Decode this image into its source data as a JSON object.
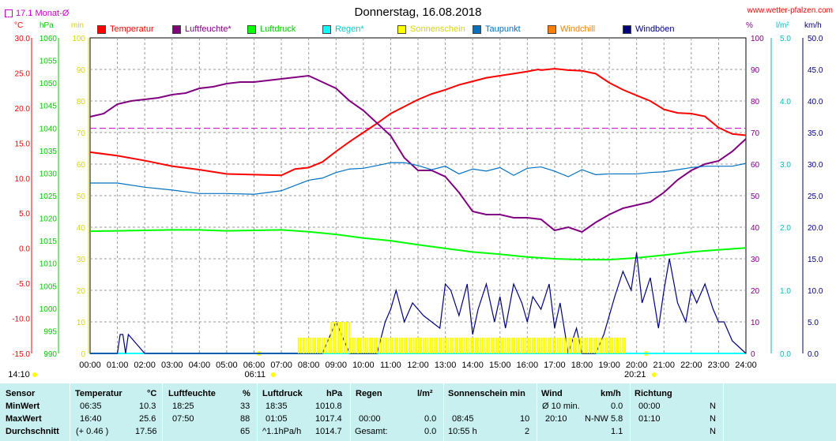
{
  "title": "Donnerstag, 16.08.2018",
  "site": "www.wetter-pfalzen.com",
  "monthly_avg_label": "17.1 Monat-Ø",
  "axis_units": {
    "temp": "°C",
    "pressure": "hPa",
    "minutes": "min",
    "percent": "%",
    "rain": "l/m²",
    "wind": "km/h"
  },
  "legend": [
    {
      "label": "Temperatur",
      "color": "#ff0000"
    },
    {
      "label": "Luftfeuchte*",
      "color": "#800080"
    },
    {
      "label": "Luftdruck",
      "color": "#00ff00"
    },
    {
      "label": "Regen*",
      "color": "#00ffff"
    },
    {
      "label": "Sonnenschein",
      "color": "#ffff00"
    },
    {
      "label": "Taupunkt",
      "color": "#0070c0"
    },
    {
      "label": "Windchill",
      "color": "#ff8000"
    },
    {
      "label": "Windböen",
      "color": "#000080"
    }
  ],
  "axes": {
    "temp_ticks": [
      "30.0",
      "25.0",
      "20.0",
      "15.0",
      "10.0",
      "5.0",
      "0.0",
      "-5.0",
      "-10.0",
      "-15.0"
    ],
    "pressure_ticks": [
      "1060",
      "1055",
      "1050",
      "1045",
      "1040",
      "1035",
      "1030",
      "1025",
      "1020",
      "1015",
      "1010",
      "1005",
      "1000",
      "995",
      "990"
    ],
    "minutes_ticks": [
      "100",
      "90",
      "80",
      "70",
      "60",
      "50",
      "40",
      "30",
      "20",
      "10",
      "0"
    ],
    "percent_ticks": [
      "100",
      "90",
      "80",
      "70",
      "60",
      "50",
      "40",
      "30",
      "20",
      "10",
      "0"
    ],
    "rain_ticks": [
      "5.0",
      "4.0",
      "3.0",
      "2.0",
      "1.0",
      "0.0"
    ],
    "wind_ticks": [
      "50.0",
      "45.0",
      "40.0",
      "35.0",
      "30.0",
      "25.0",
      "20.0",
      "15.0",
      "10.0",
      "5.0",
      "0.0"
    ],
    "time_ticks": [
      "00:00",
      "01:00",
      "02:00",
      "03:00",
      "04:00",
      "05:00",
      "06:00",
      "07:00",
      "08:00",
      "09:00",
      "10:00",
      "11:00",
      "12:00",
      "13:00",
      "14:00",
      "15:00",
      "16:00",
      "17:00",
      "18:00",
      "19:00",
      "20:00",
      "21:00",
      "22:00",
      "23:00",
      "24:00"
    ],
    "sunrise": "06:11",
    "sunset": "20:21",
    "now": "14:10"
  },
  "chart_data": {
    "type": "line",
    "title": "Donnerstag, 16.08.2018",
    "x_unit": "hours",
    "monthly_avg_temp": 17.1,
    "temp_range": [
      -15,
      30
    ],
    "pressure_range": [
      990,
      1060
    ],
    "percent_range": [
      0,
      100
    ],
    "rain_range": [
      0,
      5
    ],
    "wind_range": [
      0,
      50
    ],
    "series": [
      {
        "name": "Temperatur",
        "axis": "temp",
        "x": [
          0,
          1,
          2,
          3,
          4,
          5,
          6,
          7,
          7.5,
          8,
          8.5,
          9,
          9.5,
          10,
          10.5,
          11,
          11.5,
          12,
          12.5,
          13,
          13.5,
          14,
          14.5,
          15,
          15.5,
          16,
          16.4,
          16.5,
          17,
          17.5,
          18,
          18.5,
          19,
          19.5,
          20,
          20.5,
          21,
          21.5,
          22,
          22.5,
          23,
          23.5,
          24
        ],
        "values": [
          13.7,
          13.2,
          12.5,
          11.7,
          11.2,
          10.6,
          10.5,
          10.4,
          11.3,
          11.5,
          12.3,
          13.8,
          15.2,
          16.5,
          17.8,
          19.2,
          20.2,
          21.2,
          22.0,
          22.6,
          23.3,
          23.8,
          24.3,
          24.6,
          24.9,
          25.2,
          25.5,
          25.4,
          25.6,
          25.4,
          25.3,
          24.9,
          23.6,
          22.6,
          21.8,
          21.0,
          19.8,
          19.3,
          19.2,
          18.8,
          17.2,
          16.3,
          16.1
        ]
      },
      {
        "name": "Luftfeuchte*",
        "axis": "percent",
        "x": [
          0,
          0.5,
          1,
          1.5,
          2,
          2.5,
          3,
          3.5,
          4,
          4.5,
          5,
          5.5,
          6,
          6.5,
          7,
          7.5,
          8,
          8.5,
          9,
          9.5,
          10,
          10.5,
          11,
          11.5,
          12,
          12.5,
          13,
          13.5,
          14,
          14.5,
          15,
          15.5,
          16,
          16.5,
          17,
          17.5,
          18,
          18.5,
          19,
          19.5,
          20,
          20.5,
          21,
          21.5,
          22,
          22.5,
          23,
          23.5,
          24
        ],
        "values": [
          75,
          76,
          79,
          80,
          80.5,
          81,
          82,
          82.5,
          84,
          84.5,
          85.5,
          86,
          86,
          86.5,
          87,
          87.5,
          88,
          86,
          84,
          80,
          77,
          73,
          69,
          62,
          58,
          58,
          56,
          51,
          45,
          44,
          44,
          43,
          43,
          42.5,
          39,
          40,
          38.5,
          41.5,
          44,
          46,
          47,
          48,
          51,
          55,
          58,
          60,
          61,
          64,
          68
        ]
      },
      {
        "name": "Luftdruck",
        "axis": "pressure",
        "x": [
          0,
          1,
          2,
          3,
          4,
          5,
          6,
          7,
          8,
          9,
          10,
          11,
          12,
          13,
          14,
          15,
          16,
          17,
          18,
          19,
          20,
          21,
          22,
          23,
          24
        ],
        "values": [
          1017.1,
          1017.2,
          1017.3,
          1017.4,
          1017.4,
          1017.2,
          1017.3,
          1017.4,
          1017.0,
          1016.4,
          1015.6,
          1015.0,
          1014.1,
          1013.3,
          1012.5,
          1012.0,
          1011.4,
          1011.0,
          1010.8,
          1010.8,
          1011.2,
          1011.8,
          1012.5,
          1013.0,
          1013.4
        ]
      },
      {
        "name": "Regen*",
        "axis": "rain",
        "x": [
          0,
          24
        ],
        "values": [
          0,
          0
        ]
      },
      {
        "name": "Taupunkt",
        "axis": "temp",
        "x": [
          0,
          1,
          2,
          3,
          4,
          5,
          6,
          7,
          8,
          8.5,
          9,
          9.5,
          10,
          10.5,
          11,
          11.5,
          12,
          12.5,
          13,
          13.5,
          14,
          14.5,
          15,
          15.5,
          16,
          16.5,
          17,
          17.5,
          18,
          18.5,
          19,
          19.5,
          20,
          20.5,
          21,
          21.5,
          22,
          22.5,
          23,
          23.5,
          24
        ],
        "values": [
          9.3,
          9.3,
          8.7,
          8.3,
          7.8,
          7.8,
          7.7,
          8.2,
          9.7,
          10.0,
          10.8,
          11.3,
          11.4,
          11.8,
          12.2,
          12.2,
          11.8,
          11.2,
          11.7,
          10.6,
          11.3,
          11.0,
          11.5,
          10.4,
          11.4,
          11.6,
          11.0,
          10.2,
          11.2,
          10.5,
          10.6,
          10.6,
          10.6,
          10.8,
          10.9,
          11.2,
          11.5,
          11.7,
          11.7,
          11.7,
          12.1
        ]
      },
      {
        "name": "Windböen",
        "axis": "wind",
        "x": [
          0,
          1,
          1.1,
          1.2,
          1.3,
          1.4,
          2,
          3,
          4,
          5,
          6,
          7,
          8,
          8.5,
          9,
          9.3,
          9.5,
          10,
          10.5,
          10.8,
          11,
          11.2,
          11.5,
          11.8,
          12,
          12.2,
          12.5,
          12.8,
          13,
          13.2,
          13.5,
          13.8,
          14,
          14.2,
          14.5,
          14.8,
          15,
          15.2,
          15.5,
          15.8,
          16,
          16.2,
          16.5,
          16.8,
          17,
          17.2,
          17.5,
          17.8,
          18,
          18.2,
          18.5,
          18.8,
          19,
          19.2,
          19.5,
          19.8,
          20,
          20.2,
          20.5,
          20.8,
          21,
          21.2,
          21.5,
          21.8,
          22,
          22.2,
          22.5,
          22.8,
          23,
          23.2,
          23.5,
          24
        ],
        "values": [
          0,
          0,
          3,
          3,
          0,
          3,
          0,
          0,
          0,
          0,
          0,
          0,
          0,
          0,
          5,
          2,
          0,
          0,
          0,
          5,
          7,
          10,
          5,
          8,
          7,
          6,
          5,
          4,
          11,
          10,
          6,
          11,
          3,
          7,
          11,
          5,
          9,
          4,
          11,
          8,
          5,
          9,
          7,
          11,
          4,
          8,
          0,
          4,
          0,
          0,
          0,
          3,
          6,
          9,
          13,
          10,
          16,
          8,
          12,
          4,
          10,
          15,
          8,
          5,
          10,
          8,
          11,
          7,
          5,
          5,
          2,
          0
        ]
      },
      {
        "name": "Sonnenschein",
        "axis": "minutes",
        "x": [
          7.6,
          7.8,
          8.8,
          9.2,
          9.5,
          9.8,
          10.3,
          10.8,
          11.4,
          12,
          12.5,
          13,
          13.5,
          14,
          14.5,
          15,
          15.5,
          16,
          16.5,
          17,
          17.5,
          18,
          18.5,
          19,
          19.3
        ],
        "values": [
          5,
          5,
          10,
          10,
          5,
          5,
          5,
          5,
          5,
          5,
          5,
          5,
          5,
          5,
          5,
          5,
          5,
          5,
          5,
          5,
          5,
          5,
          5,
          5,
          5
        ]
      }
    ]
  },
  "stats": {
    "headers": {
      "sensor": "Sensor",
      "temp": "Temperatur",
      "temp_unit": "°C",
      "hum": "Luftfeuchte",
      "hum_unit": "%",
      "press": "Luftdruck",
      "press_unit": "hPa",
      "rain": "Regen",
      "rain_unit": "l/m²",
      "sun": "Sonnenschein min",
      "wind": "Wind",
      "wind_unit": "km/h",
      "dir": "Richtung"
    },
    "rows": [
      {
        "label": "MinWert",
        "temp_time": "06:35",
        "temp_val": "10.3",
        "hum_time": "18:25",
        "hum_val": "33",
        "press_time": "18:35",
        "press_val": "1010.8",
        "rain_time": "",
        "rain_val": "",
        "sun_time": "",
        "sun_val": "",
        "wind_time": "Ø 10 min.",
        "wind_val": "0.0",
        "dir_time": "00:00",
        "dir_val": "N"
      },
      {
        "label": "MaxWert",
        "temp_time": "16:40",
        "temp_val": "25.6",
        "hum_time": "07:50",
        "hum_val": "88",
        "press_time": "01:05",
        "press_val": "1017.4",
        "rain_time": "00:00",
        "rain_val": "0.0",
        "sun_time": "08:45",
        "sun_val": "10",
        "wind_time": "20:10",
        "wind_val": "N-NW 5.8",
        "dir_time": "01:10",
        "dir_val": "N"
      },
      {
        "label": "Durchschnitt",
        "temp_time": "(+ 0.46 )",
        "temp_val": "17.56",
        "hum_time": "",
        "hum_val": "65",
        "press_time": "^1.1hPa/h",
        "press_val": "1014.7",
        "rain_time": "Gesamt:",
        "rain_val": "0.0",
        "sun_time": "10:55 h",
        "sun_val": "2",
        "wind_time": "",
        "wind_val": "1.1",
        "dir_time": "",
        "dir_val": "N"
      }
    ]
  }
}
